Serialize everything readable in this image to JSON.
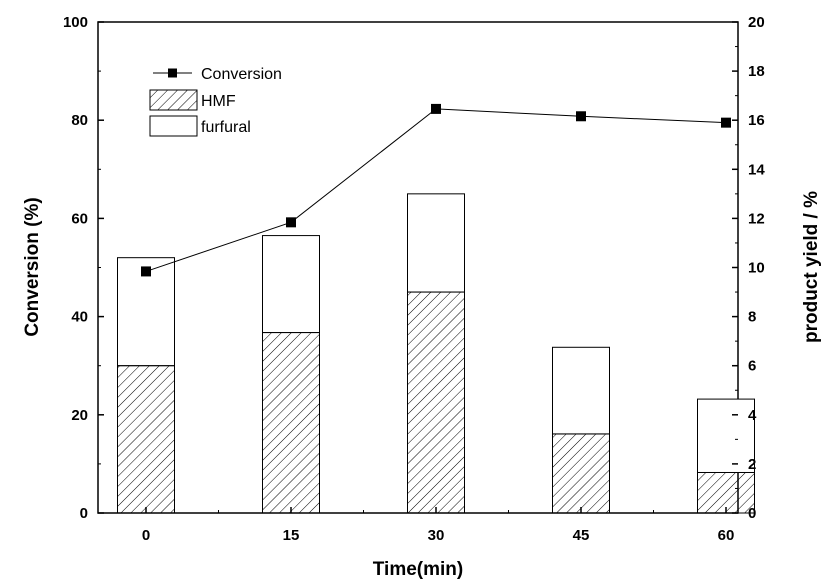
{
  "chart_data": {
    "type": "bar",
    "title": "",
    "xlabel": "Time(min)",
    "ylabel": "Conversion (%)",
    "y2label": "product yield / %",
    "categories": [
      "0",
      "15",
      "30",
      "45",
      "60"
    ],
    "ylim": [
      0,
      100
    ],
    "y2lim": [
      0,
      20
    ],
    "yticks": [
      0,
      20,
      40,
      60,
      80,
      100
    ],
    "y2ticks": [
      0,
      2,
      4,
      6,
      8,
      10,
      12,
      14,
      16,
      18,
      20
    ],
    "grid": false,
    "legend_position": "top-left",
    "series": [
      {
        "name": "Conversion",
        "type": "line",
        "axis": "left",
        "values": [
          49.2,
          59.2,
          82.3,
          80.8,
          79.5
        ],
        "color": "#000000"
      },
      {
        "name": "HMF",
        "type": "bar",
        "stacked": true,
        "axis": "right",
        "pattern": "hatch",
        "values": [
          6.0,
          7.35,
          9.0,
          3.22,
          1.65
        ],
        "color": "#000000"
      },
      {
        "name": "furfural",
        "type": "bar",
        "stacked": true,
        "axis": "right",
        "pattern": "none",
        "values": [
          4.4,
          3.95,
          4.0,
          3.53,
          2.99
        ],
        "color": "#ffffff"
      }
    ]
  }
}
